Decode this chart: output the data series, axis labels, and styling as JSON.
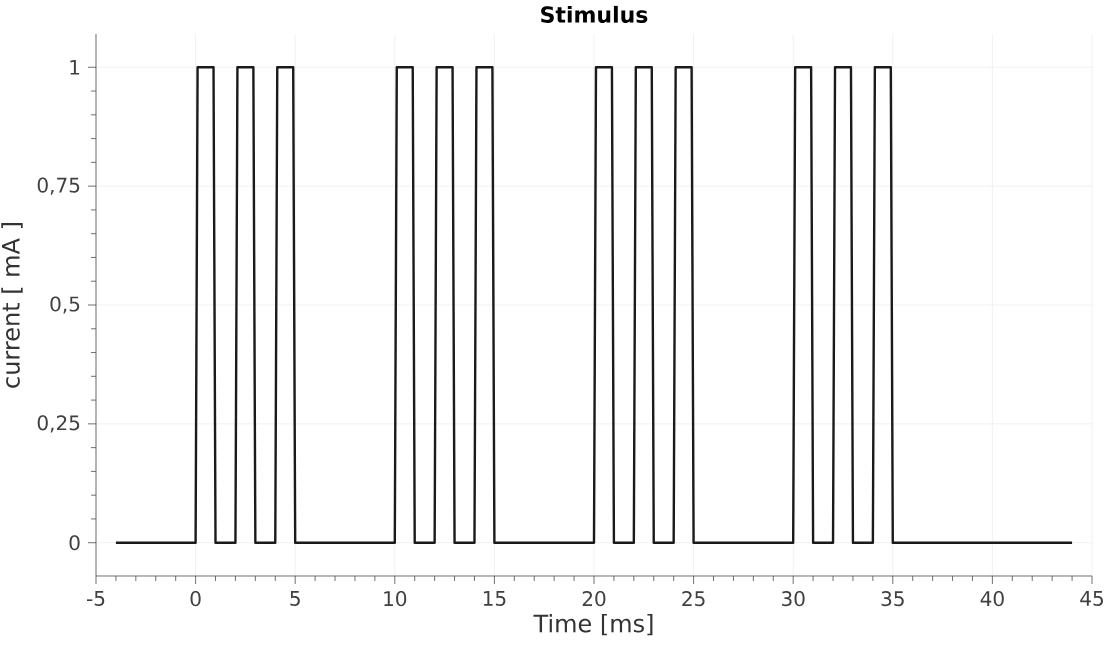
{
  "chart_data": {
    "type": "line",
    "title": "Stimulus",
    "xlabel": "Time [ms]",
    "ylabel": "current [ mA ]",
    "x": [
      -4,
      0,
      0.1,
      0.9,
      1,
      2,
      2.1,
      2.9,
      3,
      4,
      4.1,
      4.9,
      5,
      10,
      10.1,
      10.9,
      11,
      12,
      12.1,
      12.9,
      13,
      14,
      14.1,
      14.9,
      15,
      20,
      20.1,
      20.9,
      21,
      22,
      22.1,
      22.9,
      23,
      24,
      24.1,
      24.9,
      25,
      30,
      30.1,
      30.9,
      31,
      32,
      32.1,
      32.9,
      33,
      34,
      34.1,
      34.9,
      35,
      44
    ],
    "series": [
      {
        "color": "#1a1a1a",
        "values": [
          0,
          0,
          1,
          1,
          0,
          0,
          1,
          1,
          0,
          0,
          1,
          1,
          0,
          0,
          1,
          1,
          0,
          0,
          1,
          1,
          0,
          0,
          1,
          1,
          0,
          0,
          1,
          1,
          0,
          0,
          1,
          1,
          0,
          0,
          1,
          1,
          0,
          0,
          1,
          1,
          0,
          0,
          1,
          1,
          0,
          0,
          1,
          1,
          0,
          0
        ]
      }
    ],
    "xlim": [
      -5,
      45
    ],
    "xticks": [
      -5,
      0,
      5,
      10,
      15,
      20,
      25,
      30,
      35,
      40,
      45
    ],
    "ylim": [
      -0.07,
      1.07
    ],
    "yticks": [
      0,
      {
        "value": 0.25,
        "label": "0,25"
      },
      {
        "value": 0.5,
        "label": "0,5"
      },
      {
        "value": 0.75,
        "label": "0,75"
      },
      1
    ],
    "grid": true,
    "marker": "none",
    "line_style": "solid"
  }
}
